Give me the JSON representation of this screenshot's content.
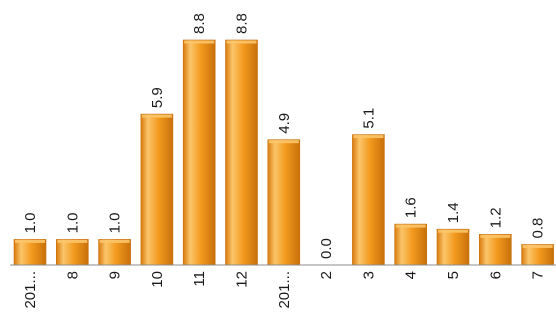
{
  "chart_data": {
    "type": "bar",
    "categories": [
      "201...",
      "8",
      "9",
      "10",
      "11",
      "12",
      "201...",
      "2",
      "3",
      "4",
      "5",
      "6",
      "7"
    ],
    "values": [
      1.0,
      1.0,
      1.0,
      5.9,
      8.8,
      8.8,
      4.9,
      0.0,
      5.1,
      1.6,
      1.4,
      1.2,
      0.8
    ],
    "value_labels": [
      "1.0",
      "1.0",
      "1.0",
      "5.9",
      "8.8",
      "8.8",
      "4.9",
      "0.0",
      "5.1",
      "1.6",
      "1.4",
      "1.2",
      "0.8"
    ],
    "title": "",
    "xlabel": "",
    "ylabel": "",
    "ylim": [
      0,
      8.8
    ],
    "grid": false,
    "legend": "none",
    "bar_color": "#f39a1e",
    "bar_color_light": "#fbc56a",
    "bar_color_dark": "#c8700a"
  }
}
